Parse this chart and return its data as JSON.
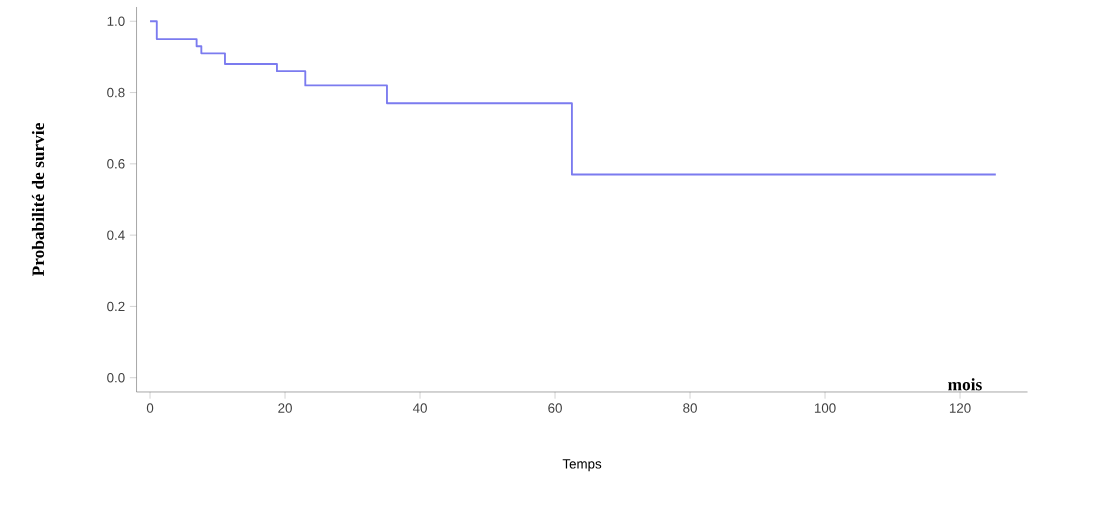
{
  "chart_data": {
    "type": "step",
    "xlabel": "Temps",
    "ylabel": "Probabilité de survie",
    "annotations": [
      "mois"
    ],
    "x": [
      0,
      1,
      6.9,
      7.6,
      11.1,
      18.8,
      23,
      35.1,
      62.5,
      125.3
    ],
    "values": [
      1,
      0.95,
      0.93,
      0.91,
      0.88,
      0.86,
      0.82,
      0.77,
      0.57,
      0.57
    ],
    "color": "#7b7bef",
    "xlim": [
      -2,
      130
    ],
    "ylim": [
      -0.04,
      1.04
    ],
    "xticks": [
      0,
      20,
      40,
      60,
      80,
      100,
      120
    ],
    "yticks": [
      {
        "value": 0,
        "label": "0.0"
      },
      {
        "value": 0.2,
        "label": "0.2"
      },
      {
        "value": 0.4,
        "label": "0.4"
      },
      {
        "value": 0.6,
        "label": "0.6"
      },
      {
        "value": 0.8,
        "label": "0.8"
      },
      {
        "value": 1,
        "label": "1.0"
      }
    ],
    "grid": false
  }
}
